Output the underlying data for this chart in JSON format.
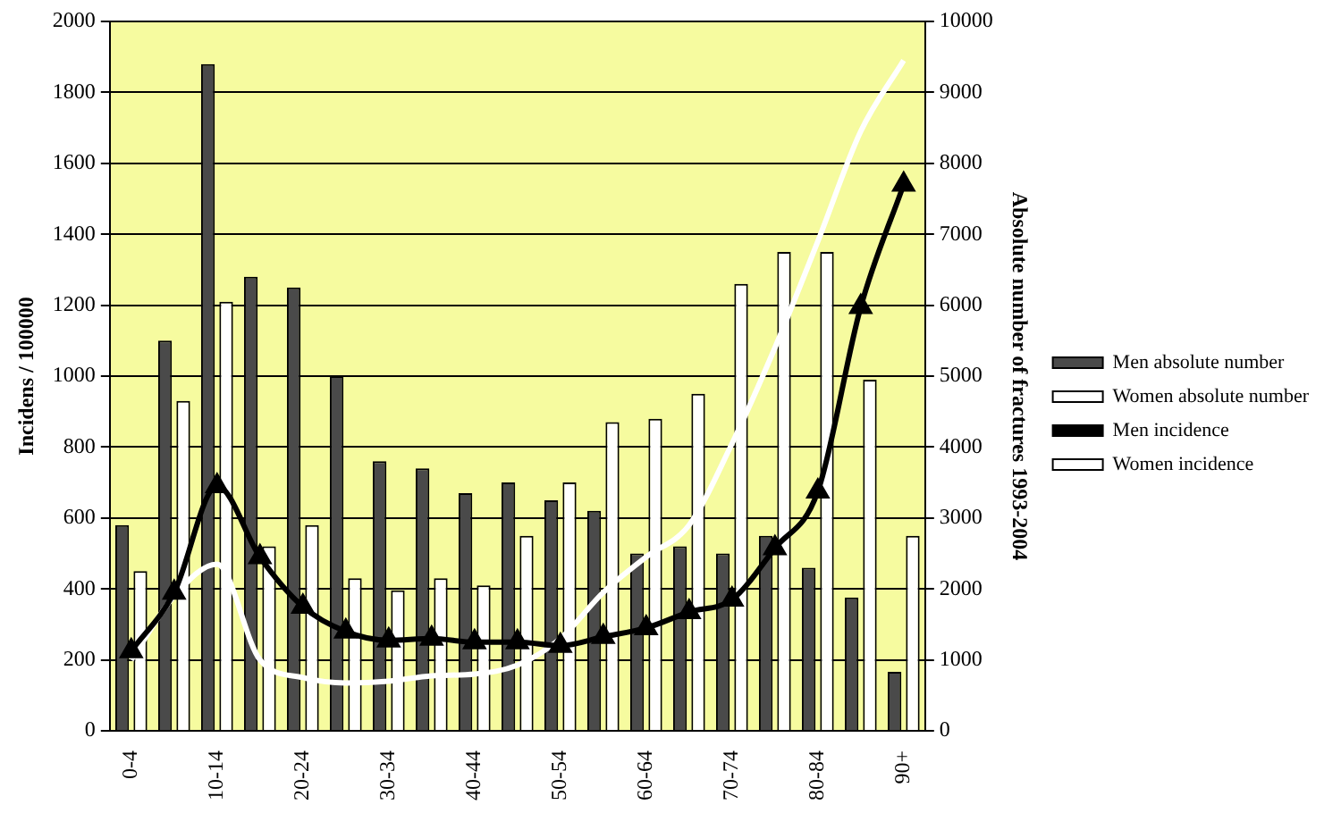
{
  "chart_data": {
    "type": "bar",
    "ylabel": "Incidens / 100000",
    "y2label": "Absolute number of fractures 1993-2004",
    "categories": [
      "0-4",
      null,
      "10-14",
      null,
      "20-24",
      null,
      "30-34",
      null,
      "40-44",
      null,
      "50-54",
      null,
      "60-64",
      null,
      "70-74",
      null,
      "80-84",
      null,
      "90+"
    ],
    "series": [
      {
        "name": "Men absolute number",
        "axis": "y2",
        "color": "#4a4a4a",
        "values": [
          2900,
          5500,
          9400,
          6400,
          6250,
          5000,
          3800,
          3700,
          3350,
          3500,
          3250,
          3100,
          2500,
          2600,
          2500,
          2750,
          2300,
          1880,
          830
        ]
      },
      {
        "name": "Women absolute number",
        "axis": "y2",
        "color": "#ffffff",
        "values": [
          2250,
          4650,
          6050,
          2600,
          2900,
          2150,
          1980,
          2150,
          2050,
          2750,
          3500,
          4350,
          4400,
          4750,
          6300,
          6750,
          6750,
          4950,
          2750
        ]
      },
      {
        "name": "Men incidence",
        "type": "line",
        "axis": "y",
        "color": "#000000",
        "marker": "triangle",
        "values": [
          225,
          390,
          690,
          490,
          350,
          280,
          255,
          260,
          250,
          250,
          240,
          265,
          290,
          335,
          370,
          515,
          675,
          1195,
          1540
        ]
      },
      {
        "name": "Women incidence",
        "type": "line",
        "axis": "y",
        "color": "#ffffff",
        "marker": "none",
        "values": [
          200,
          380,
          470,
          200,
          150,
          135,
          140,
          155,
          160,
          185,
          260,
          390,
          490,
          580,
          810,
          1080,
          1380,
          1690,
          1890
        ]
      }
    ],
    "ylim": [
      0,
      2000
    ],
    "yticks": [
      0,
      200,
      400,
      600,
      800,
      1000,
      1200,
      1400,
      1600,
      1800,
      2000
    ],
    "y2lim": [
      0,
      10000
    ],
    "y2ticks": [
      0,
      1000,
      2000,
      3000,
      4000,
      5000,
      6000,
      7000,
      8000,
      9000,
      10000
    ],
    "grid": "y",
    "legend": "right"
  }
}
